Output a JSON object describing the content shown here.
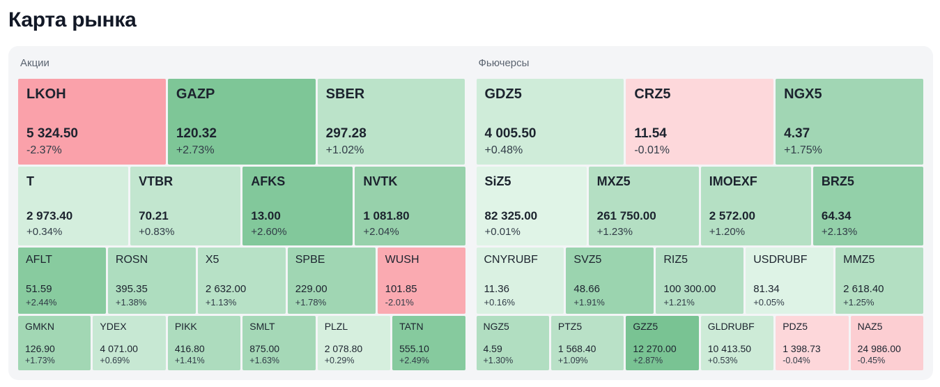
{
  "page": {
    "title": "Карта рынка"
  },
  "colors": {
    "positive_light": "#e0f4e7",
    "positive_strong": "#74c18f",
    "negative_light": "#fdd8db",
    "negative_strong": "#f9939d",
    "scale_max_pct": 3,
    "panel_background": "#f4f5f7"
  },
  "sections": [
    {
      "label": "Акции",
      "rows": [
        {
          "tiles": [
            {
              "ticker": "LKOH",
              "price": "5 324.50",
              "change": "-2.37%"
            },
            {
              "ticker": "GAZP",
              "price": "120.32",
              "change": "+2.73%"
            },
            {
              "ticker": "SBER",
              "price": "297.28",
              "change": "+1.02%"
            }
          ]
        },
        {
          "tiles": [
            {
              "ticker": "T",
              "price": "2 973.40",
              "change": "+0.34%"
            },
            {
              "ticker": "VTBR",
              "price": "70.21",
              "change": "+0.83%"
            },
            {
              "ticker": "AFKS",
              "price": "13.00",
              "change": "+2.60%"
            },
            {
              "ticker": "NVTK",
              "price": "1 081.80",
              "change": "+2.04%"
            }
          ]
        },
        {
          "tiles": [
            {
              "ticker": "AFLT",
              "price": "51.59",
              "change": "+2.44%"
            },
            {
              "ticker": "ROSN",
              "price": "395.35",
              "change": "+1.38%"
            },
            {
              "ticker": "X5",
              "price": "2 632.00",
              "change": "+1.13%"
            },
            {
              "ticker": "SPBE",
              "price": "229.00",
              "change": "+1.78%"
            },
            {
              "ticker": "WUSH",
              "price": "101.85",
              "change": "-2.01%"
            }
          ]
        },
        {
          "tiles": [
            {
              "ticker": "GMKN",
              "price": "126.90",
              "change": "+1.73%"
            },
            {
              "ticker": "YDEX",
              "price": "4 071.00",
              "change": "+0.69%"
            },
            {
              "ticker": "PIKK",
              "price": "416.80",
              "change": "+1.41%"
            },
            {
              "ticker": "SMLT",
              "price": "875.00",
              "change": "+1.63%"
            },
            {
              "ticker": "PLZL",
              "price": "2 078.80",
              "change": "+0.29%"
            },
            {
              "ticker": "TATN",
              "price": "555.10",
              "change": "+2.49%"
            }
          ]
        }
      ]
    },
    {
      "label": "Фьючерсы",
      "rows": [
        {
          "tiles": [
            {
              "ticker": "GDZ5",
              "price": "4 005.50",
              "change": "+0.48%"
            },
            {
              "ticker": "CRZ5",
              "price": "11.54",
              "change": "-0.01%"
            },
            {
              "ticker": "NGX5",
              "price": "4.37",
              "change": "+1.75%"
            }
          ]
        },
        {
          "tiles": [
            {
              "ticker": "SiZ5",
              "price": "82 325.00",
              "change": "+0.01%"
            },
            {
              "ticker": "MXZ5",
              "price": "261 750.00",
              "change": "+1.23%"
            },
            {
              "ticker": "IMOEXF",
              "price": "2 572.00",
              "change": "+1.20%"
            },
            {
              "ticker": "BRZ5",
              "price": "64.34",
              "change": "+2.13%"
            }
          ]
        },
        {
          "tiles": [
            {
              "ticker": "CNYRUBF",
              "price": "11.36",
              "change": "+0.16%"
            },
            {
              "ticker": "SVZ5",
              "price": "48.66",
              "change": "+1.91%"
            },
            {
              "ticker": "RIZ5",
              "price": "100 300.00",
              "change": "+1.21%"
            },
            {
              "ticker": "USDRUBF",
              "price": "81.34",
              "change": "+0.05%"
            },
            {
              "ticker": "MMZ5",
              "price": "2 618.40",
              "change": "+1.25%"
            }
          ]
        },
        {
          "tiles": [
            {
              "ticker": "NGZ5",
              "price": "4.59",
              "change": "+1.30%"
            },
            {
              "ticker": "PTZ5",
              "price": "1 568.40",
              "change": "+1.09%"
            },
            {
              "ticker": "GZZ5",
              "price": "12 270.00",
              "change": "+2.87%"
            },
            {
              "ticker": "GLDRUBF",
              "price": "10 413.50",
              "change": "+0.53%"
            },
            {
              "ticker": "PDZ5",
              "price": "1 398.73",
              "change": "-0.04%"
            },
            {
              "ticker": "NAZ5",
              "price": "24 986.00",
              "change": "-0.45%"
            }
          ]
        }
      ]
    }
  ]
}
